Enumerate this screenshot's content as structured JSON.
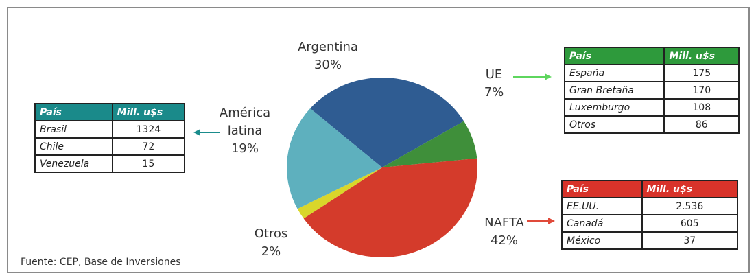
{
  "chart_data": {
    "type": "pie",
    "categories": [
      "Argentina",
      "UE",
      "NAFTA",
      "Otros",
      "América latina"
    ],
    "values": [
      30,
      7,
      42,
      2,
      19
    ],
    "value_labels": [
      "30%",
      "7%",
      "42%",
      "2%",
      "19%"
    ],
    "colors": [
      "#2f5c92",
      "#3f8f3a",
      "#d43b2b",
      "#d9d62a",
      "#5eb0be"
    ]
  },
  "tables": [
    {
      "header": [
        "País",
        "Mill. u$s"
      ],
      "rows": [
        [
          "Brasil",
          "1324"
        ],
        [
          "Chile",
          "72"
        ],
        [
          "Venezuela",
          "15"
        ]
      ]
    },
    {
      "header": [
        "País",
        "Mill. u$s"
      ],
      "rows": [
        [
          "España",
          "175"
        ],
        [
          "Gran Bretaña",
          "170"
        ],
        [
          "Luxemburgo",
          "108"
        ],
        [
          "Otros",
          "86"
        ]
      ]
    },
    {
      "header": [
        "País",
        "Mill. u$s"
      ],
      "rows": [
        [
          "EE.UU.",
          "2.536"
        ],
        [
          "Canadá",
          "605"
        ],
        [
          "México",
          "37"
        ]
      ]
    }
  ],
  "source": "Fuente: CEP, Base de Inversiones"
}
